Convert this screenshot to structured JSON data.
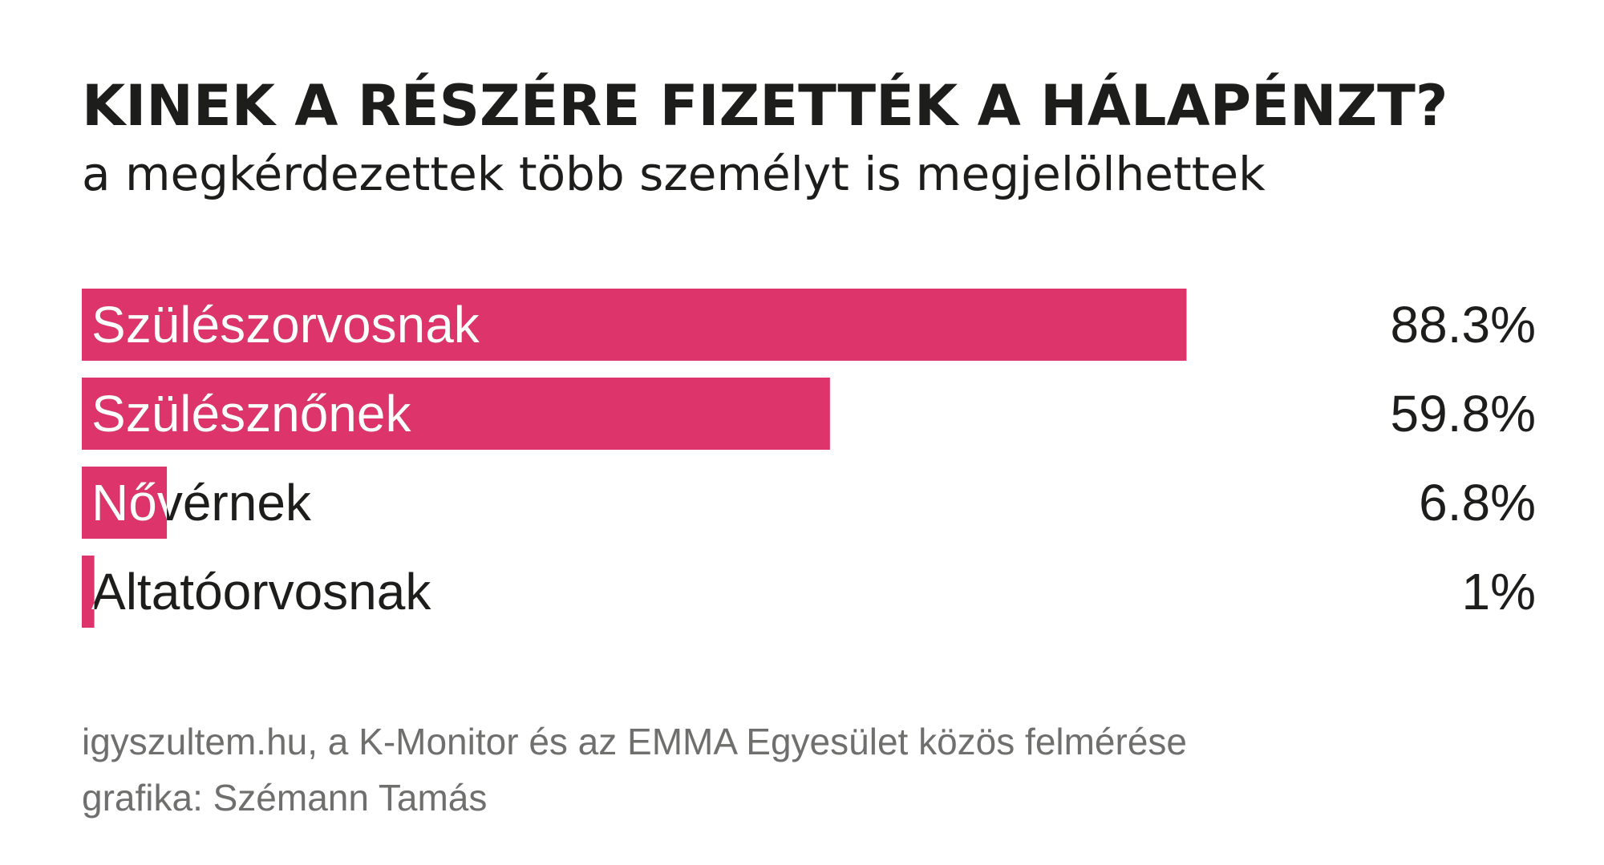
{
  "header": {
    "title": "KINEK A RÉSZÉRE FIZETTÉK A HÁLAPÉNZT?",
    "subtitle": "a megkérdezettek több személyt is megjelölhettek"
  },
  "chart_data": {
    "type": "bar",
    "orientation": "horizontal",
    "title": "KINEK A RÉSZÉRE FIZETTÉK A HÁLAPÉNZT?",
    "subtitle": "a megkérdezettek több személyt is megjelölhettek",
    "categories": [
      "Szülészorvosnak",
      "Szülésznőnek",
      "Nővérnek",
      "Altatóorvosnak"
    ],
    "values": [
      88.3,
      59.8,
      6.8,
      1
    ],
    "value_labels": [
      "88.3%",
      "59.8%",
      "6.8%",
      "1%"
    ],
    "unit": "%",
    "xlim": [
      0,
      100
    ],
    "grid": false,
    "legend": "none",
    "bar_color": "#dd346b",
    "text_color": "#1d1d1b",
    "label_on_bar_color": "#ffffff"
  },
  "source": {
    "line1": "igyszultem.hu, a K-Monitor és az EMMA Egyesület közös felmérése",
    "line2": "grafika: Szémann Tamás"
  }
}
